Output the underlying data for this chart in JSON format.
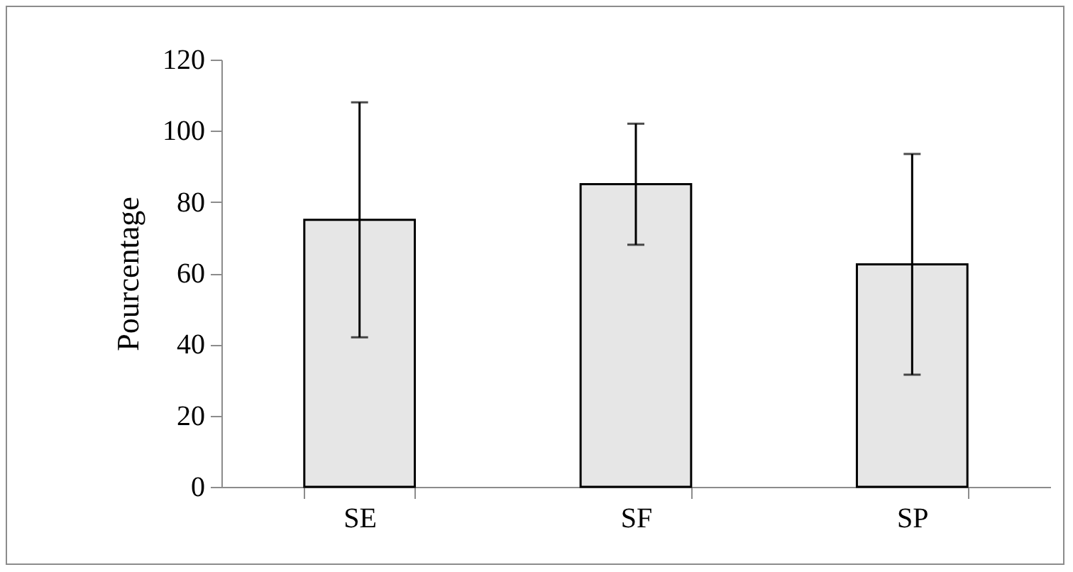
{
  "chart_data": {
    "type": "bar",
    "ylabel": "Pourcentage",
    "categories": [
      "SE",
      "SF",
      "SP"
    ],
    "values": [
      75,
      85,
      62.5
    ],
    "errors": [
      33,
      17,
      31
    ],
    "color": "#e6e6e6",
    "ylim": [
      0,
      120
    ],
    "yticks": [
      0,
      20,
      40,
      60,
      80,
      100,
      120
    ],
    "grid": false
  }
}
